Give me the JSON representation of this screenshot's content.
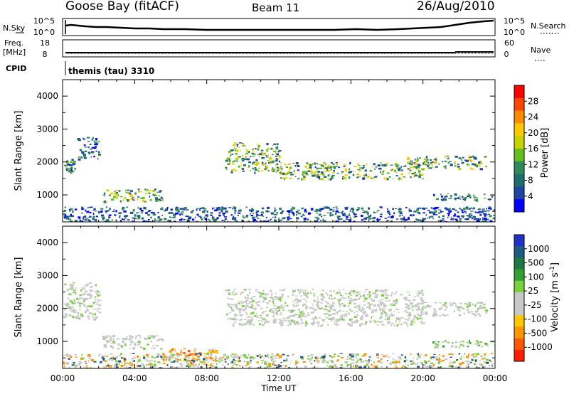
{
  "header": {
    "station": "Goose Bay (fitACF)",
    "beam": "Beam 11",
    "date": "26/Aug/2010"
  },
  "nsky_panel": {
    "left_label": "N.Sky",
    "right_label": "N.Search",
    "left_ticks": [
      "10^5",
      "10^0"
    ],
    "right_ticks": [
      "10^5",
      "10^0"
    ]
  },
  "freq_panel": {
    "left_label_1": "Freq.",
    "left_label_2": "[MHz]",
    "right_label": "Nave",
    "left_ticks": [
      "18",
      "8"
    ],
    "right_ticks": [
      "60",
      "0"
    ]
  },
  "cpid": {
    "label": "CPID",
    "text": "themis (tau) 3310"
  },
  "colorbars": {
    "power": {
      "label": "Power [dB]",
      "ticks": [
        "28",
        "24",
        "20",
        "16",
        "12",
        "8",
        "4"
      ],
      "colors": [
        "#ff0000",
        "#ff4500",
        "#ff8c00",
        "#ffc800",
        "#c8d200",
        "#64be1e",
        "#2e8b57",
        "#1e6e6e",
        "#1e46a0",
        "#0000ff"
      ]
    },
    "velocity": {
      "label": "Velocity [m s",
      "label_sup": "-1",
      "label_end": "]",
      "ticks": [
        "1000",
        "500",
        "100",
        "25",
        "-25",
        "-100",
        "-500",
        "-1000"
      ],
      "colors": [
        "#1e32c8",
        "#1e5a82",
        "#1e7846",
        "#32a032",
        "#78d23c",
        "#c8c8c8",
        "#c8c8c8",
        "#ffc800",
        "#ff9600",
        "#ff5a00",
        "#ff1e00"
      ]
    }
  },
  "time_axis": {
    "label": "Time UT",
    "ticks": [
      "00:00",
      "04:00",
      "08:00",
      "12:00",
      "16:00",
      "20:00",
      "00:00"
    ]
  },
  "chart_data": [
    {
      "type": "heatmap",
      "title": "Power",
      "ylabel": "Slant Range [km]",
      "xlabel": "",
      "xlim": [
        0,
        24
      ],
      "ylim": [
        180,
        4500
      ],
      "yticks": [
        1000,
        2000,
        3000,
        4000
      ],
      "colorbar_label": "Power [dB]",
      "colorbar_range": [
        0,
        30
      ],
      "echo_regions": [
        {
          "t": [
            0.0,
            0.8
          ],
          "r": [
            1700,
            2100
          ],
          "level": "mid"
        },
        {
          "t": [
            0.8,
            2.0
          ],
          "r": [
            2100,
            2800
          ],
          "level": "mid"
        },
        {
          "t": [
            2.2,
            5.5
          ],
          "r": [
            800,
            1200
          ],
          "level": "high"
        },
        {
          "t": [
            0.0,
            24.0
          ],
          "r": [
            200,
            650
          ],
          "level": "low"
        },
        {
          "t": [
            9.0,
            12.0
          ],
          "r": [
            1700,
            2600
          ],
          "level": "high"
        },
        {
          "t": [
            12.0,
            20.0
          ],
          "r": [
            1500,
            2000
          ],
          "level": "high"
        },
        {
          "t": [
            19.0,
            23.5
          ],
          "r": [
            1800,
            2200
          ],
          "level": "high"
        },
        {
          "t": [
            20.5,
            24.0
          ],
          "r": [
            850,
            1050
          ],
          "level": "mid"
        }
      ]
    },
    {
      "type": "heatmap",
      "title": "Velocity",
      "ylabel": "Slant Range [km]",
      "xlabel": "Time UT",
      "xlim": [
        0,
        24
      ],
      "ylim": [
        180,
        4500
      ],
      "yticks": [
        1000,
        2000,
        3000,
        4000
      ],
      "colorbar_label": "Velocity [m s-1]",
      "colorbar_range": [
        -1000,
        1000
      ],
      "echo_regions": [
        {
          "t": [
            0.0,
            2.0
          ],
          "r": [
            1700,
            2800
          ],
          "velocity": 0
        },
        {
          "t": [
            2.2,
            5.5
          ],
          "r": [
            800,
            1200
          ],
          "velocity": 0
        },
        {
          "t": [
            5.5,
            8.5
          ],
          "r": [
            300,
            800
          ],
          "velocity": -150
        },
        {
          "t": [
            0.0,
            24.0
          ],
          "r": [
            200,
            650
          ],
          "velocity": 50
        },
        {
          "t": [
            9.0,
            20.0
          ],
          "r": [
            1500,
            2600
          ],
          "velocity": 0
        },
        {
          "t": [
            19.0,
            23.5
          ],
          "r": [
            1800,
            2200
          ],
          "velocity": 0
        },
        {
          "t": [
            20.5,
            24.0
          ],
          "r": [
            850,
            1050
          ],
          "velocity": 150
        }
      ]
    }
  ]
}
